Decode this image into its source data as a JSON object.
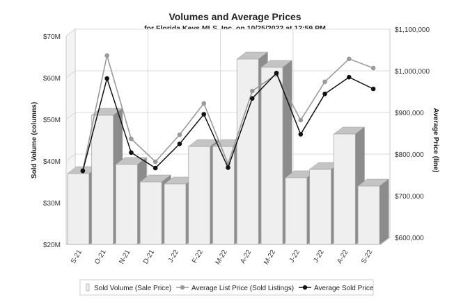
{
  "chart_data": {
    "type": "bar",
    "title": "Volumes and Average Prices",
    "subtitle": "for Florida Keys MLS, Inc. on 10/25/2022 at 12:59 PM",
    "categories": [
      "S-21",
      "O-21",
      "N-21",
      "D-21",
      "J-22",
      "F-22",
      "M-22",
      "A-22",
      "M-22",
      "J-22",
      "J-22",
      "A-22",
      "S-22"
    ],
    "ylabel": "Sold Volume (columns)",
    "ylabel_right": "Average Price (line)",
    "ylim": [
      20,
      70
    ],
    "ylim_right": [
      600000,
      1100000
    ],
    "y_ticks": [
      "$20M",
      "$30M",
      "$40M",
      "$50M",
      "$60M",
      "$70M"
    ],
    "y_right_ticks": [
      "$600,000",
      "$700,000",
      "$800,000",
      "$900,000",
      "$1,000,000",
      "$1,100,000"
    ],
    "grid": true,
    "legend_position": "bottom",
    "series": [
      {
        "name": "Sold Volume (Sale Price)",
        "kind": "bar",
        "axis": "left",
        "color": "#eeeeee",
        "values": [
          37,
          51,
          39.2,
          35,
          34.5,
          43.5,
          43.5,
          64.5,
          62.5,
          36,
          38,
          46.5,
          34
        ]
      },
      {
        "name": "Average List Price (Sold Listings)",
        "kind": "line",
        "axis": "right",
        "color": "#9a9a9a",
        "values": [
          770000,
          1045000,
          845000,
          790000,
          855000,
          930000,
          785000,
          960000,
          1000000,
          890000,
          982000,
          1037000,
          1015000
        ]
      },
      {
        "name": "Average Sold Price",
        "kind": "line",
        "axis": "right",
        "color": "#111111",
        "values": [
          768000,
          990000,
          812000,
          775000,
          833000,
          904000,
          776000,
          942000,
          1003000,
          856000,
          953000,
          993000,
          965000
        ]
      }
    ]
  }
}
